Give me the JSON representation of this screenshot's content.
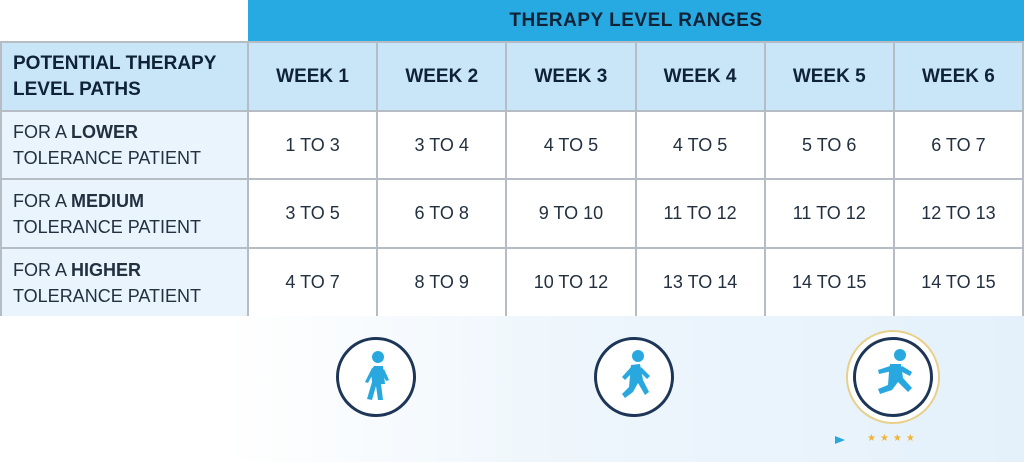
{
  "banner": "THERAPY LEVEL RANGES",
  "corner": [
    "POTENTIAL THERAPY",
    "LEVEL PATHS"
  ],
  "weeks": [
    "WEEK 1",
    "WEEK 2",
    "WEEK 3",
    "WEEK 4",
    "WEEK 5",
    "WEEK 6"
  ],
  "rows": [
    {
      "prefix": "FOR A ",
      "emph": "LOWER",
      "suffix": "TOLERANCE PATIENT",
      "values": [
        "1 TO 3",
        "3 TO 4",
        "4 TO 5",
        "4 TO 5",
        "5 TO 6",
        "6 TO 7"
      ]
    },
    {
      "prefix": "FOR A ",
      "emph": "MEDIUM",
      "suffix": "TOLERANCE PATIENT",
      "values": [
        "3 TO 5",
        "6 TO 8",
        "9 TO 10",
        "11 TO 12",
        "11 TO 12",
        "12 TO 13"
      ]
    },
    {
      "prefix": "FOR A ",
      "emph": "HIGHER",
      "suffix": "TOLERANCE PATIENT",
      "values": [
        "4 TO 7",
        "8 TO 9",
        "10 TO 12",
        "13 TO 14",
        "14 TO 15",
        "14 TO 15"
      ]
    }
  ],
  "icons": [
    "walking-person-icon",
    "jogging-person-icon",
    "running-person-icon"
  ],
  "colors": {
    "banner": "#27aae1",
    "header_bg": "#c9e6f9",
    "rowhead_bg": "#e9f4fd",
    "icon_fill": "#29a8e0",
    "icon_ring": "#1d3556",
    "highlight_ring": "#e8cf8a",
    "stars": "#f0b43a"
  }
}
